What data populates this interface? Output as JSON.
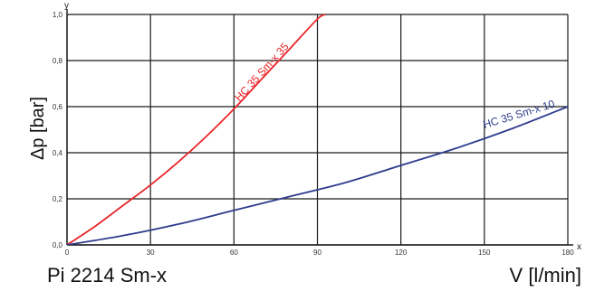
{
  "chart_data": {
    "type": "line",
    "title": "",
    "model_label": "Pi 2214 Sm-x",
    "xlabel": "V [l/min]",
    "ylabel": "Δp [bar]",
    "x_axis_letter": "x",
    "y_axis_letter": "y",
    "xlim": [
      0,
      180
    ],
    "ylim": [
      0,
      1.0
    ],
    "xticks": [
      0,
      30,
      60,
      90,
      120,
      150,
      180
    ],
    "yticks": [
      0.0,
      0.2,
      0.4,
      0.6,
      0.8,
      1.0
    ],
    "xtick_labels": [
      "0",
      "30",
      "60",
      "90",
      "120",
      "150",
      "180"
    ],
    "ytick_labels": [
      "0,0",
      "0,2",
      "0,4",
      "0,6",
      "0,8",
      "1,0"
    ],
    "grid": true,
    "series": [
      {
        "name": "HC 35 Sm-x 35",
        "color": "#e8262b",
        "x": [
          0,
          10,
          20,
          30,
          40,
          50,
          60,
          70,
          80,
          90,
          93
        ],
        "y": [
          0.0,
          0.08,
          0.17,
          0.26,
          0.36,
          0.47,
          0.59,
          0.72,
          0.85,
          0.98,
          1.0
        ]
      },
      {
        "name": "HC 35 Sm-x 10",
        "color": "#2e3b8c",
        "x": [
          0,
          20,
          40,
          60,
          80,
          100,
          120,
          140,
          160,
          180
        ],
        "y": [
          0.0,
          0.04,
          0.09,
          0.15,
          0.21,
          0.27,
          0.345,
          0.42,
          0.505,
          0.6
        ]
      }
    ]
  }
}
